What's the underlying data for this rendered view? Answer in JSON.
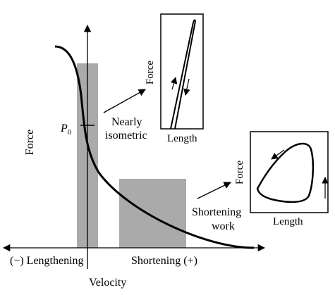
{
  "main_plot": {
    "y_axis_label": "Force",
    "p0_label": "P",
    "p0_subscript": "0",
    "x_axis_label": "Velocity",
    "x_left_label": "(−) Lengthening",
    "x_right_label": "Shortening (+)",
    "annotation_isometric_line1": "Nearly",
    "annotation_isometric_line2": "isometric",
    "annotation_shortening_line1": "Shortening",
    "annotation_shortening_line2": "work",
    "bar_color": "#aaaaaa"
  },
  "inset_isometric": {
    "x_label": "Length",
    "y_label": "Force"
  },
  "inset_work_loop": {
    "x_label": "Length",
    "y_label": "Force"
  }
}
